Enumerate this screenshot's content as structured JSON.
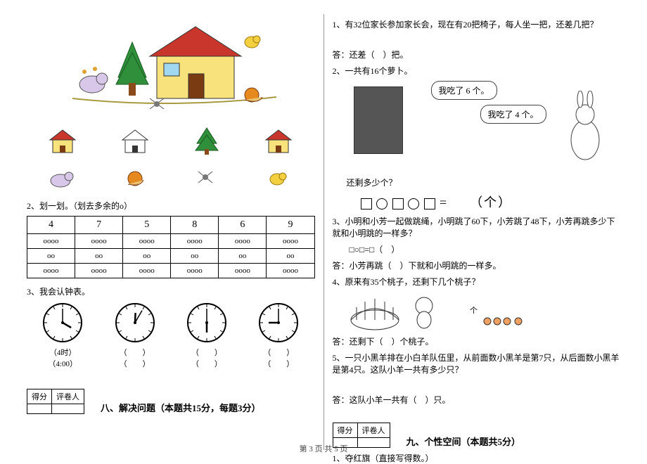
{
  "left": {
    "q2": {
      "label": "2、划一划。（划去多余的o）",
      "headers": [
        "4",
        "7",
        "5",
        "8",
        "6",
        "9"
      ],
      "rows": [
        [
          "oooo",
          "oooo",
          "oooo",
          "oooo",
          "oooo",
          "oooo"
        ],
        [
          "oo",
          "oo",
          "oo",
          "oo",
          "oo",
          "oo"
        ],
        [
          "oooo",
          "oooo",
          "oooo",
          "oooo",
          "oooo",
          "oooo"
        ]
      ]
    },
    "q3": {
      "label": "3、我会认钟表。",
      "line1": [
        "（4时）",
        "（　　）",
        "（　　）",
        "（　　）"
      ],
      "line2": [
        "（4:00）",
        "（　　）",
        "（　　）",
        "（　　）"
      ]
    },
    "score": {
      "c1": "得分",
      "c2": "评卷人"
    },
    "section8": "八、解决问题（本题共15分，每题3分）"
  },
  "right": {
    "p1": {
      "text": "1、有32位家长参加家长会，现在有20把椅子，每人坐一把，还差几把？",
      "ans": "答：还差（　）把。"
    },
    "p2": {
      "text": "2、一共有16个萝卜。",
      "bubble1": "我吃了 6 个。",
      "bubble2": "我吃了 4 个。",
      "sub": "还剩多少个？",
      "eq_tail": "=　　（个）"
    },
    "p3": {
      "text": "3、小明和小芳一起做跳绳，小明跳了60下，小芳跳了48下，小芳再跳多少下就和小明跳的一样多？",
      "eq": "□○□=□（　）",
      "ans": "答：小芳再跳（　）下就和小明跳的一样多。"
    },
    "p4": {
      "text": "4、原来有35个桃子，还剩下几个桃子？",
      "ans": "答：还剩下（　）个桃子。"
    },
    "p5": {
      "text": "5、一只小黑羊排在小白羊队伍里，从前面数小黑羊是第7只，从后面数小黑羊是第4只。这队小羊一共有多少只？",
      "ans": "答：这队小羊一共有（　）只。"
    },
    "score": {
      "c1": "得分",
      "c2": "评卷人"
    },
    "section9": "九、个性空间（本题共5分）",
    "p9_1": "1、夺红旗（直接写得数。）"
  },
  "footer": "第 3 页  共 5 页",
  "clocks": [
    {
      "h": 4,
      "m": 0
    },
    {
      "h": 12,
      "m": 5
    },
    {
      "h": 6,
      "m": 0
    },
    {
      "h": 9,
      "m": 0
    }
  ],
  "colors": {
    "house_wall": "#f7e27b",
    "house_roof": "#c9362b",
    "tree": "#2f8f3a",
    "trunk": "#8b4a1a",
    "ground": "#d4c96a",
    "sky": "#ffffff"
  }
}
